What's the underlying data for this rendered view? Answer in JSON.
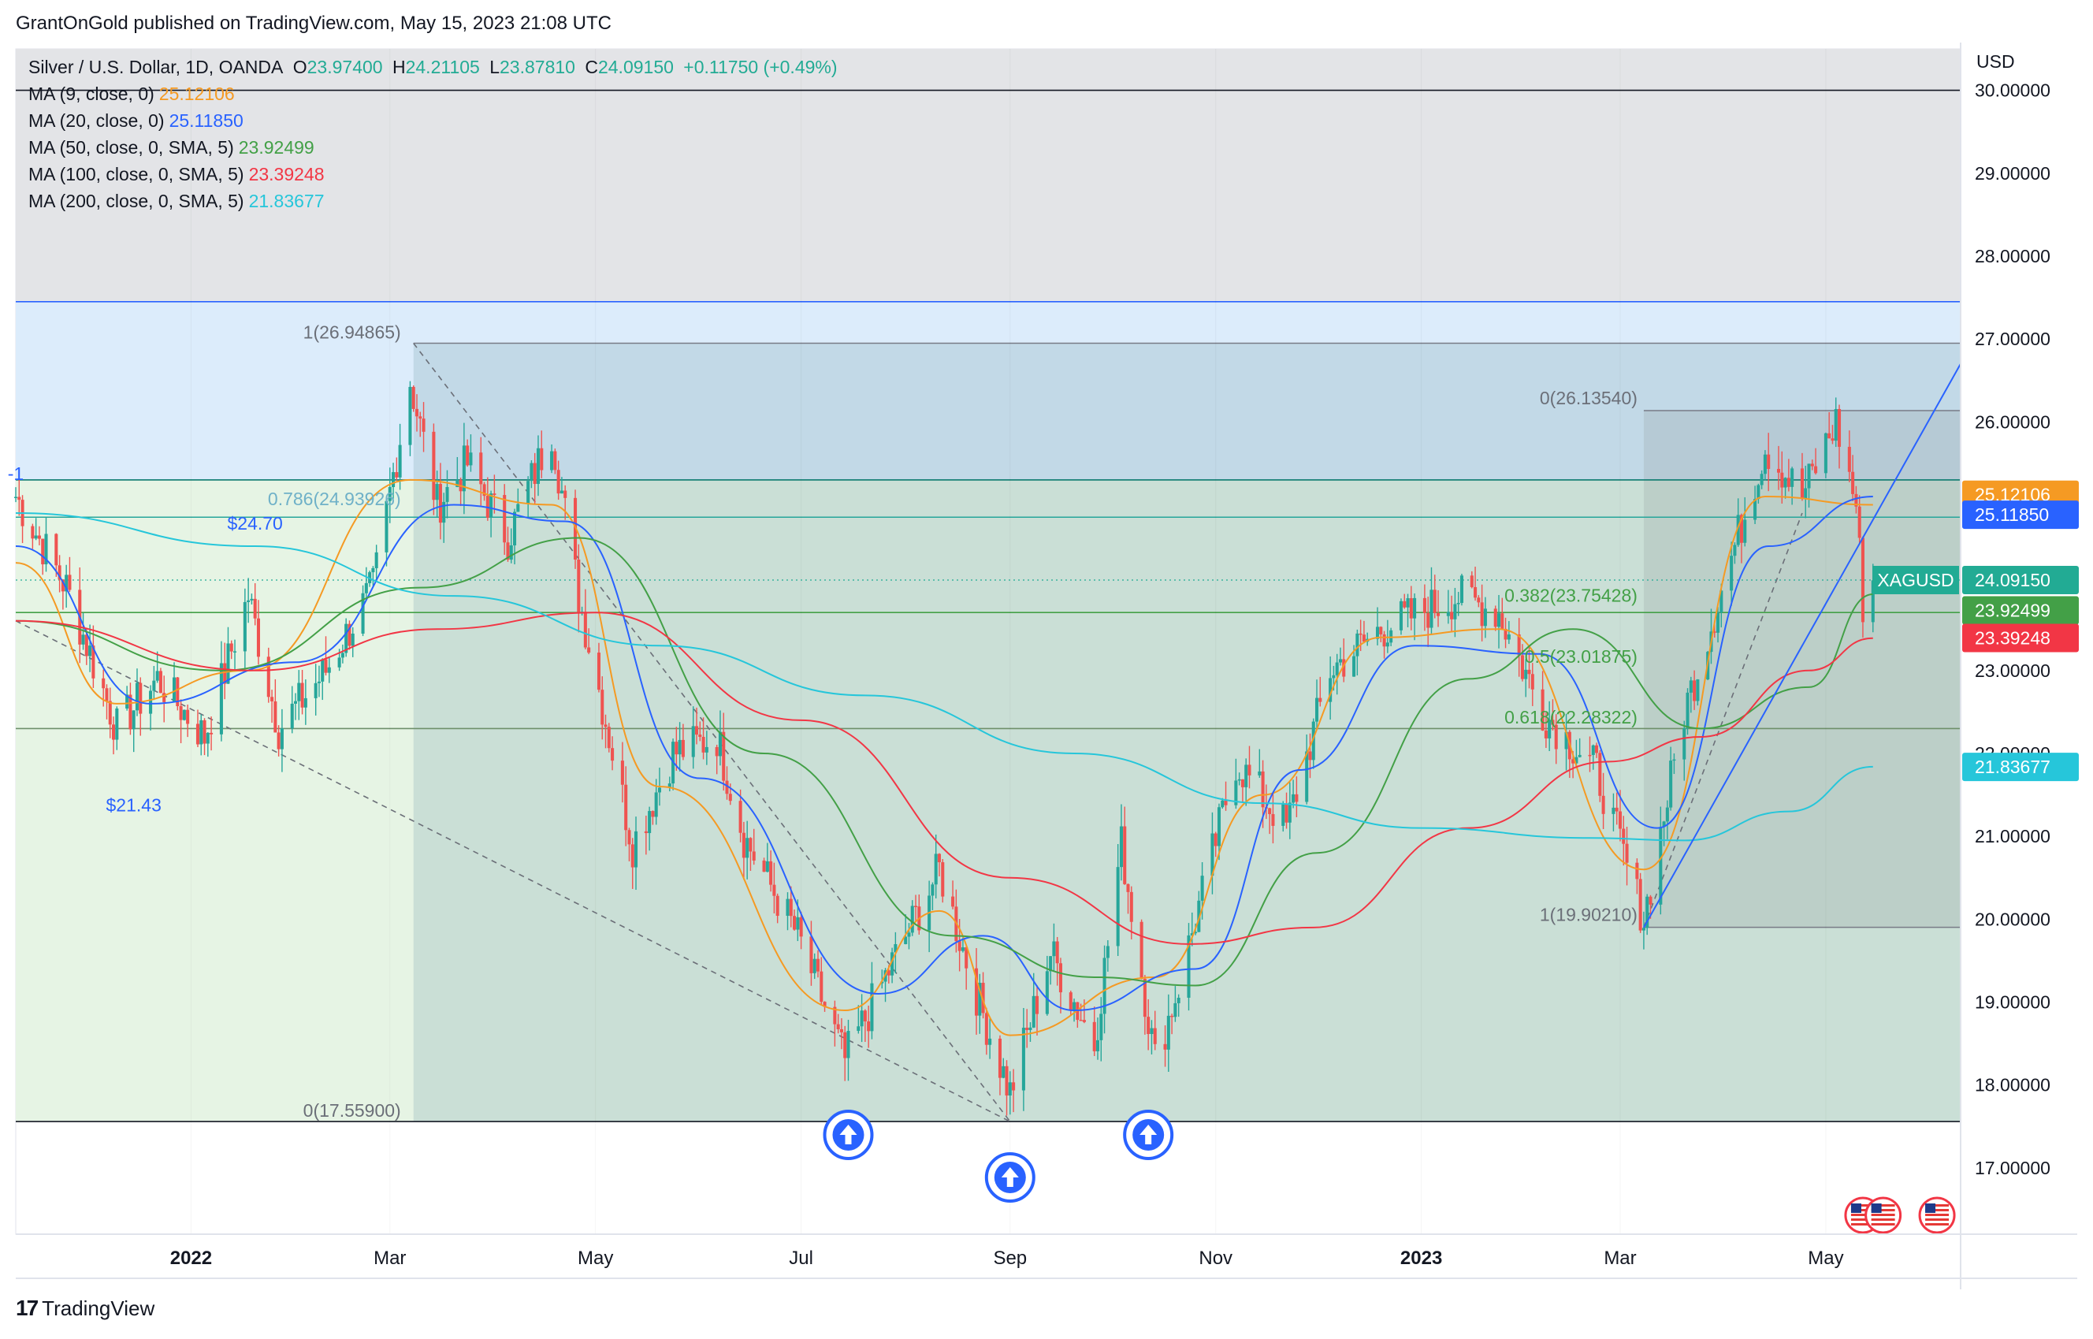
{
  "header": {
    "text": "GrantOnGold published on TradingView.com, May 15, 2023 21:08 UTC"
  },
  "legend": {
    "instrument": "Silver / U.S. Dollar, 1D, OANDA",
    "ohlc": [
      {
        "k": "O",
        "v": "23.97400"
      },
      {
        "k": "H",
        "v": "24.21105"
      },
      {
        "k": "L",
        "v": "23.87810"
      },
      {
        "k": "C",
        "v": "24.09150"
      }
    ],
    "change": "+0.11750 (+0.49%)",
    "mas": [
      {
        "label": "MA (9, close, 0)",
        "value": "25.12106",
        "color": "#f59a23"
      },
      {
        "label": "MA (20, close, 0)",
        "value": "25.11850",
        "color": "#2962ff"
      },
      {
        "label": "MA (50, close, 0, SMA, 5)",
        "value": "23.92499",
        "color": "#43a047"
      },
      {
        "label": "MA (100, close, 0, SMA, 5)",
        "value": "23.39248",
        "color": "#f23645"
      },
      {
        "label": "MA (200, close, 0, SMA, 5)",
        "value": "21.83677",
        "color": "#26c6da"
      }
    ]
  },
  "footer": {
    "logo_text": "TradingView",
    "logo_mark": "17"
  },
  "chart_data": {
    "type": "candlestick",
    "currency_label": "USD",
    "ylim": [
      16.2,
      30.5
    ],
    "y_ticks": [
      "17.00000",
      "18.00000",
      "19.00000",
      "20.00000",
      "21.00000",
      "22.00000",
      "23.00000",
      "24.00000",
      "25.00000",
      "26.00000",
      "27.00000",
      "28.00000",
      "29.00000",
      "30.00000"
    ],
    "x_ticks": [
      {
        "label": "2022",
        "date": "2022-01-01",
        "bold": true
      },
      {
        "label": "Mar",
        "date": "2022-03-01"
      },
      {
        "label": "May",
        "date": "2022-05-01"
      },
      {
        "label": "Jul",
        "date": "2022-07-01"
      },
      {
        "label": "Sep",
        "date": "2022-09-01"
      },
      {
        "label": "Nov",
        "date": "2022-11-01"
      },
      {
        "label": "2023",
        "date": "2023-01-01",
        "bold": true
      },
      {
        "label": "Mar",
        "date": "2023-03-01"
      },
      {
        "label": "May",
        "date": "2023-05-01"
      }
    ],
    "x_range": [
      "2021-11-10",
      "2023-06-10"
    ],
    "price_badges": [
      {
        "value": "25.12106",
        "price": 25.12106,
        "color": "#f59a23"
      },
      {
        "value": "25.11850",
        "price": 24.88,
        "color": "#2962ff"
      },
      {
        "value": "24.09150",
        "price": 24.0915,
        "color": "#22ab94",
        "tag": "XAGUSD"
      },
      {
        "value": "23.92499",
        "price": 23.725,
        "color": "#43a047"
      },
      {
        "value": "23.39248",
        "price": 23.39248,
        "color": "#f23645"
      },
      {
        "value": "21.83677",
        "price": 21.83677,
        "color": "#26c6da"
      }
    ],
    "close_key": [
      [
        "2021-11-10",
        25.1
      ],
      [
        "2021-11-25",
        24.0
      ],
      [
        "2021-12-10",
        22.3
      ],
      [
        "2021-12-22",
        22.9
      ],
      [
        "2022-01-05",
        22.2
      ],
      [
        "2022-01-18",
        23.9
      ],
      [
        "2022-01-27",
        22.3
      ],
      [
        "2022-02-10",
        23.0
      ],
      [
        "2022-02-24",
        24.0
      ],
      [
        "2022-03-07",
        26.5
      ],
      [
        "2022-03-15",
        25.0
      ],
      [
        "2022-03-24",
        25.5
      ],
      [
        "2022-04-05",
        24.6
      ],
      [
        "2022-04-18",
        25.9
      ],
      [
        "2022-04-26",
        23.9
      ],
      [
        "2022-05-12",
        20.9
      ],
      [
        "2022-05-24",
        22.0
      ],
      [
        "2022-06-06",
        22.2
      ],
      [
        "2022-06-14",
        21.0
      ],
      [
        "2022-06-30",
        19.8
      ],
      [
        "2022-07-14",
        18.3
      ],
      [
        "2022-07-26",
        19.3
      ],
      [
        "2022-08-11",
        20.6
      ],
      [
        "2022-08-22",
        19.1
      ],
      [
        "2022-09-01",
        17.9
      ],
      [
        "2022-09-13",
        19.6
      ],
      [
        "2022-09-26",
        18.5
      ],
      [
        "2022-10-04",
        20.9
      ],
      [
        "2022-10-14",
        18.3
      ],
      [
        "2022-10-21",
        19.2
      ],
      [
        "2022-11-07",
        21.9
      ],
      [
        "2022-11-22",
        21.1
      ],
      [
        "2022-12-05",
        23.0
      ],
      [
        "2022-12-20",
        23.5
      ],
      [
        "2023-01-12",
        23.9
      ],
      [
        "2023-01-24",
        23.7
      ],
      [
        "2023-02-06",
        22.5
      ],
      [
        "2023-02-22",
        21.8
      ],
      [
        "2023-03-08",
        20.0
      ],
      [
        "2023-03-20",
        22.5
      ],
      [
        "2023-04-04",
        24.5
      ],
      [
        "2023-04-13",
        25.7
      ],
      [
        "2023-04-24",
        25.1
      ],
      [
        "2023-05-04",
        26.0
      ],
      [
        "2023-05-10",
        25.0
      ],
      [
        "2023-05-12",
        23.8
      ],
      [
        "2023-05-15",
        24.09
      ]
    ],
    "ma_series": [
      {
        "name": "MA 9",
        "color": "#f59a23",
        "points": [
          [
            "2021-11-10",
            24.3
          ],
          [
            "2021-12-10",
            22.6
          ],
          [
            "2022-01-18",
            23.0
          ],
          [
            "2022-03-07",
            25.3
          ],
          [
            "2022-04-18",
            25.0
          ],
          [
            "2022-05-20",
            21.6
          ],
          [
            "2022-07-14",
            18.9
          ],
          [
            "2022-08-11",
            20.1
          ],
          [
            "2022-09-01",
            18.6
          ],
          [
            "2022-10-14",
            19.3
          ],
          [
            "2022-11-15",
            21.5
          ],
          [
            "2022-12-20",
            23.4
          ],
          [
            "2023-01-24",
            23.5
          ],
          [
            "2023-03-08",
            20.6
          ],
          [
            "2023-04-13",
            25.1
          ],
          [
            "2023-05-15",
            25.0
          ]
        ]
      },
      {
        "name": "MA 20",
        "color": "#2962ff",
        "points": [
          [
            "2021-11-10",
            24.5
          ],
          [
            "2021-12-20",
            22.6
          ],
          [
            "2022-02-01",
            23.1
          ],
          [
            "2022-03-20",
            25.0
          ],
          [
            "2022-04-22",
            24.8
          ],
          [
            "2022-06-01",
            21.7
          ],
          [
            "2022-07-24",
            19.1
          ],
          [
            "2022-08-24",
            19.8
          ],
          [
            "2022-09-20",
            18.9
          ],
          [
            "2022-10-26",
            19.4
          ],
          [
            "2022-11-26",
            21.8
          ],
          [
            "2022-12-30",
            23.3
          ],
          [
            "2023-02-05",
            23.2
          ],
          [
            "2023-03-12",
            21.1
          ],
          [
            "2023-04-14",
            24.5
          ],
          [
            "2023-05-15",
            25.1
          ]
        ]
      },
      {
        "name": "MA 50",
        "color": "#43a047",
        "points": [
          [
            "2021-11-10",
            23.6
          ],
          [
            "2022-01-10",
            23.0
          ],
          [
            "2022-03-10",
            24.0
          ],
          [
            "2022-04-26",
            24.6
          ],
          [
            "2022-06-20",
            22.0
          ],
          [
            "2022-08-15",
            19.8
          ],
          [
            "2022-09-26",
            19.3
          ],
          [
            "2022-10-26",
            19.2
          ],
          [
            "2022-12-01",
            20.8
          ],
          [
            "2023-01-15",
            22.9
          ],
          [
            "2023-02-15",
            23.5
          ],
          [
            "2023-03-25",
            22.3
          ],
          [
            "2023-04-26",
            22.8
          ],
          [
            "2023-05-15",
            23.92
          ]
        ]
      },
      {
        "name": "MA 100",
        "color": "#f23645",
        "points": [
          [
            "2021-11-10",
            23.6
          ],
          [
            "2022-01-20",
            23.0
          ],
          [
            "2022-03-15",
            23.5
          ],
          [
            "2022-05-01",
            23.7
          ],
          [
            "2022-07-01",
            22.4
          ],
          [
            "2022-09-01",
            20.5
          ],
          [
            "2022-10-24",
            19.7
          ],
          [
            "2022-11-30",
            19.9
          ],
          [
            "2023-01-15",
            21.1
          ],
          [
            "2023-02-25",
            21.9
          ],
          [
            "2023-03-25",
            22.2
          ],
          [
            "2023-04-26",
            23.0
          ],
          [
            "2023-05-15",
            23.39
          ]
        ]
      },
      {
        "name": "MA 200",
        "color": "#26c6da",
        "points": [
          [
            "2021-11-10",
            24.9
          ],
          [
            "2022-01-20",
            24.5
          ],
          [
            "2022-03-20",
            23.9
          ],
          [
            "2022-05-20",
            23.3
          ],
          [
            "2022-07-20",
            22.7
          ],
          [
            "2022-09-20",
            22.0
          ],
          [
            "2022-11-15",
            21.4
          ],
          [
            "2023-01-01",
            21.1
          ],
          [
            "2023-02-20",
            20.98
          ],
          [
            "2023-03-20",
            20.95
          ],
          [
            "2023-04-20",
            21.3
          ],
          [
            "2023-05-15",
            21.84
          ]
        ]
      }
    ],
    "fib_top": {
      "date_from": "2022-03-08",
      "price_top": 26.94865,
      "price_bottom": 17.559,
      "labels": [
        {
          "text": "1(26.94865)",
          "price": 26.94865
        },
        {
          "text": "0.786(24.93926)",
          "price": 24.93926
        },
        {
          "text": "0(17.55900)",
          "price": 17.559
        }
      ]
    },
    "fib_right": {
      "date_from": "2023-03-08",
      "price_top": 26.1354,
      "price_bottom": 19.9021,
      "labels": [
        {
          "text": "0(26.13540)",
          "price": 26.1354
        },
        {
          "text": "0.382(23.75428)",
          "price": 23.75428
        },
        {
          "text": "0.5(23.01875)",
          "price": 23.01875
        },
        {
          "text": "0.618(22.28322)",
          "price": 22.28322
        },
        {
          "text": "1(19.90210)",
          "price": 19.9021
        }
      ]
    },
    "annotations": [
      {
        "text": "$24.70",
        "date": "2022-01-20",
        "price": 24.7,
        "color": "#2962ff"
      },
      {
        "text": "$21.43",
        "date": "2021-12-15",
        "price": 21.3,
        "color": "#2962ff"
      },
      {
        "text": "-1",
        "date": "2021-11-10",
        "price": 25.3,
        "color": "#2962ff"
      }
    ],
    "horizontal_lines": [
      {
        "price": 30.0,
        "color": "#131722"
      },
      {
        "price": 27.45,
        "color": "#2962ff"
      },
      {
        "price": 25.3,
        "color": "#0b7a6e"
      },
      {
        "price": 24.85,
        "color": "#26a69a"
      },
      {
        "price": 23.7,
        "color": "#43a047"
      },
      {
        "price": 22.3,
        "color": "#6e8f6a"
      },
      {
        "price": 17.559,
        "color": "#131722"
      }
    ],
    "trendline": {
      "from": [
        "2023-03-08",
        19.9
      ],
      "to": [
        "2023-06-10",
        26.7
      ],
      "color": "#2962ff"
    },
    "dashed_lines": [
      {
        "from": [
          "2022-03-08",
          26.94865
        ],
        "to": [
          "2022-09-01",
          17.559
        ]
      },
      {
        "from": [
          "2021-11-10",
          23.6
        ],
        "to": [
          "2022-09-01",
          17.559
        ]
      },
      {
        "from": [
          "2023-03-08",
          19.9
        ],
        "to": [
          "2023-04-24",
          24.9
        ]
      }
    ],
    "up_arrows": [
      {
        "date": "2022-07-15",
        "level": "top"
      },
      {
        "date": "2022-09-01",
        "level": "bottom"
      },
      {
        "date": "2022-10-12",
        "level": "top"
      }
    ],
    "flag_dates": [
      "2023-05-12",
      "2023-05-18",
      "2023-06-03"
    ]
  }
}
